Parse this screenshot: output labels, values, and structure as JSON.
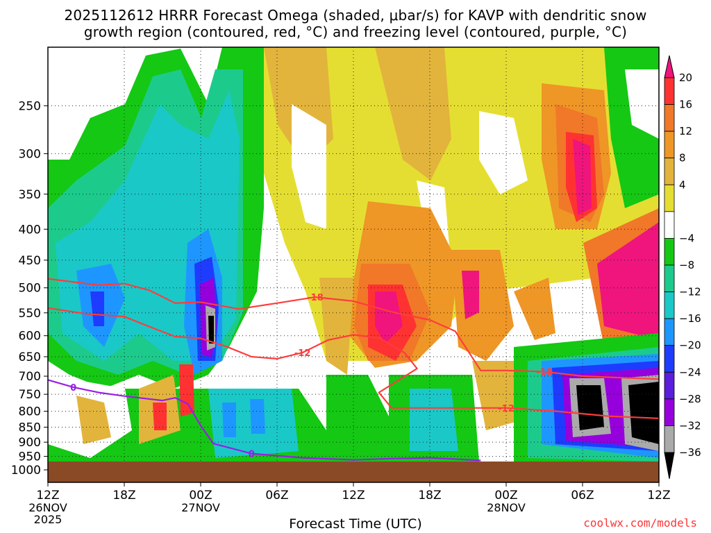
{
  "title": {
    "line1": "2025112612 HRRR Forecast Omega (shaded, μbar/s) for KAVP with dendritic snow",
    "line2": "growth region (contoured, red, °C) and freezing level (contoured, purple, °C)"
  },
  "credit": "coolwx.com/models",
  "chart_data": {
    "type": "heatmap",
    "title": "2025112612 HRRR Forecast Omega (shaded, μbar/s) for KAVP with dendritic snow growth region (contoured, red, °C) and freezing level (contoured, purple, °C)",
    "xlabel": "Forecast Time (UTC)",
    "ylabel": "",
    "x_ticks": [
      {
        "hour": 0,
        "label": "12Z",
        "sub": [
          "26NOV",
          "2025"
        ]
      },
      {
        "hour": 6,
        "label": "18Z",
        "sub": []
      },
      {
        "hour": 12,
        "label": "00Z",
        "sub": [
          "27NOV"
        ]
      },
      {
        "hour": 18,
        "label": "06Z",
        "sub": []
      },
      {
        "hour": 24,
        "label": "12Z",
        "sub": []
      },
      {
        "hour": 30,
        "label": "18Z",
        "sub": []
      },
      {
        "hour": 36,
        "label": "00Z",
        "sub": [
          "28NOV"
        ]
      },
      {
        "hour": 42,
        "label": "06Z",
        "sub": []
      },
      {
        "hour": 48,
        "label": "12Z",
        "sub": []
      }
    ],
    "xlim_hours": [
      0,
      48
    ],
    "y_ticks": [
      250,
      300,
      350,
      400,
      450,
      500,
      550,
      600,
      650,
      700,
      750,
      800,
      850,
      900,
      950,
      1000
    ],
    "ylim_hPa": [
      200,
      1000
    ],
    "y_scale": "log-pressure",
    "grid": true,
    "colorbar": {
      "labels": [
        "20",
        "16",
        "12",
        "8",
        "4",
        "−4",
        "−8",
        "−12",
        "−16",
        "−20",
        "−24",
        "−28",
        "−32",
        "−36"
      ],
      "colors": [
        "#f0147d",
        "#ff3232",
        "#f07828",
        "#ee9626",
        "#e2b43c",
        "#e5de32",
        "#ffffff",
        "#14c814",
        "#1ccb8c",
        "#1ac8c8",
        "#1e96ff",
        "#1e3cff",
        "#5a1edc",
        "#9600dc",
        "#aaaaaa",
        "#000000"
      ]
    },
    "contours": [
      {
        "name": "-18",
        "color": "#ff3c3c",
        "points": [
          [
            0,
            483
          ],
          [
            4,
            495
          ],
          [
            6,
            492
          ],
          [
            8,
            505
          ],
          [
            10,
            530
          ],
          [
            12,
            528
          ],
          [
            15,
            542
          ],
          [
            18,
            530
          ],
          [
            21,
            518
          ],
          [
            24,
            526
          ],
          [
            27,
            548
          ],
          [
            30,
            565
          ],
          [
            32,
            590
          ],
          [
            34,
            685
          ],
          [
            36,
            685
          ],
          [
            39,
            688
          ],
          [
            42,
            700
          ],
          [
            48,
            708
          ]
        ]
      },
      {
        "name": "-12",
        "color": "#ff3c3c",
        "points": [
          [
            0,
            540
          ],
          [
            3,
            552
          ],
          [
            6,
            558
          ],
          [
            8,
            580
          ],
          [
            10,
            602
          ],
          [
            12,
            606
          ],
          [
            14,
            625
          ],
          [
            16,
            650
          ],
          [
            18,
            655
          ],
          [
            20,
            640
          ],
          [
            22,
            610
          ],
          [
            24,
            598
          ],
          [
            26,
            605
          ],
          [
            28,
            640
          ],
          [
            29,
            680
          ],
          [
            26,
            745
          ],
          [
            27,
            790
          ],
          [
            31,
            790
          ],
          [
            36,
            790
          ],
          [
            40,
            800
          ],
          [
            44,
            815
          ],
          [
            48,
            822
          ]
        ]
      },
      {
        "name": "0",
        "color": "#9a1ee6",
        "points": [
          [
            0,
            710
          ],
          [
            2,
            730
          ],
          [
            4,
            745
          ],
          [
            6,
            755
          ],
          [
            9,
            768
          ],
          [
            10,
            760
          ],
          [
            11,
            778
          ],
          [
            12,
            845
          ],
          [
            13,
            905
          ],
          [
            16,
            940
          ],
          [
            20,
            955
          ],
          [
            24,
            963
          ],
          [
            27,
            958
          ],
          [
            30,
            955
          ],
          [
            34,
            965
          ]
        ]
      }
    ]
  }
}
